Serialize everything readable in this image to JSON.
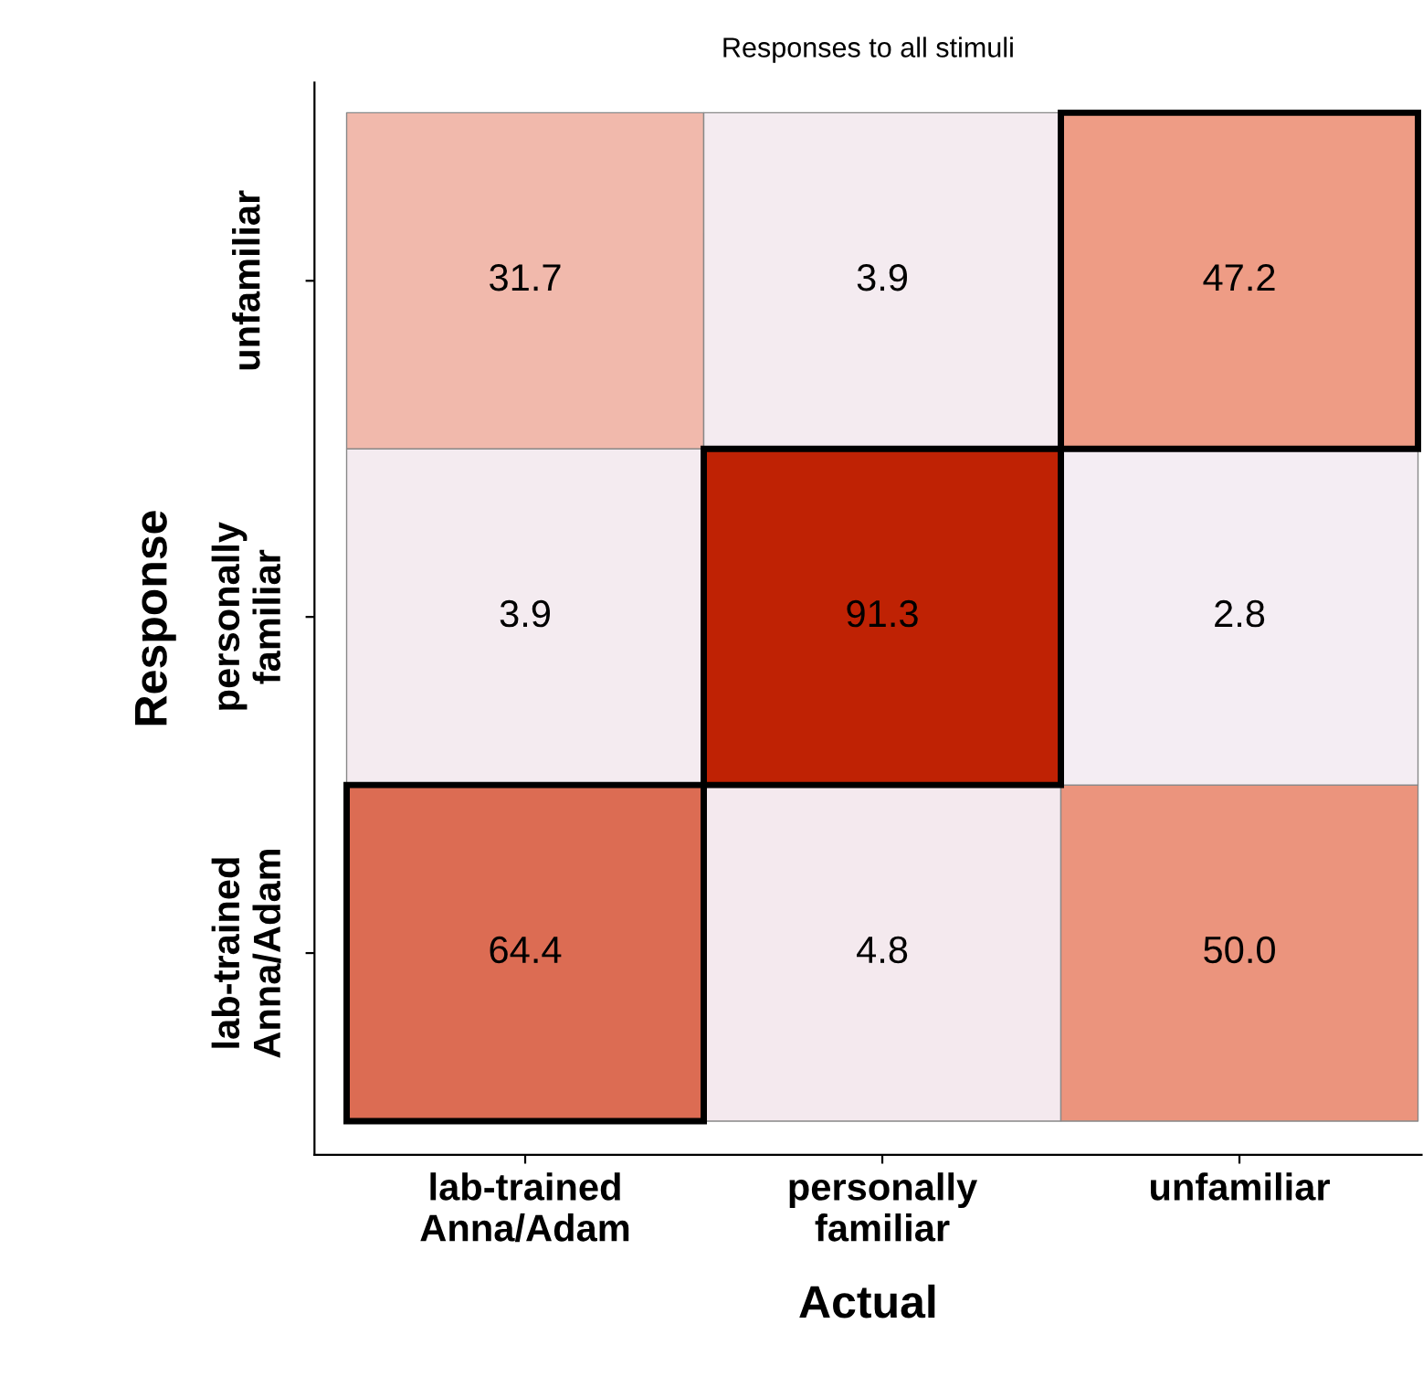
{
  "chart_data": {
    "type": "heatmap",
    "title": "Responses to all stimuli",
    "xlabel": "Actual",
    "ylabel": "Response",
    "categories": [
      "lab-trained\nAnna/Adam",
      "personally\nfamiliar",
      "unfamiliar"
    ],
    "y_categories": [
      "unfamiliar",
      "personally\nfamiliar",
      "lab-trained\nAnna/Adam"
    ],
    "cells": [
      [
        31.7,
        3.9,
        47.2
      ],
      [
        3.9,
        91.3,
        2.8
      ],
      [
        64.4,
        4.8,
        50.0
      ]
    ],
    "cell_labels": [
      [
        "31.7",
        "3.9",
        "47.2"
      ],
      [
        "3.9",
        "91.3",
        "2.8"
      ],
      [
        "64.4",
        "4.8",
        "50.0"
      ]
    ],
    "grid": false
  }
}
